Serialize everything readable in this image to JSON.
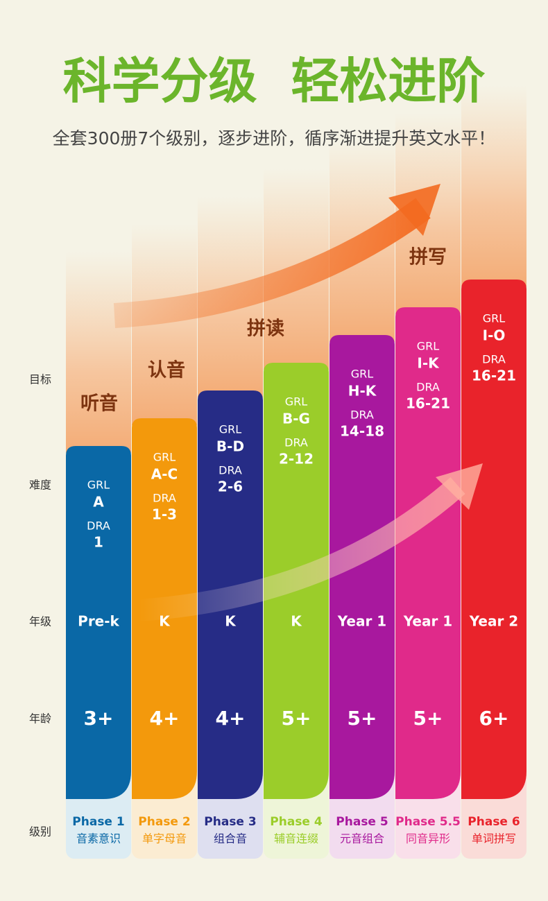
{
  "header": {
    "title": "科学分级  轻松进阶",
    "subtitle": "全套300册7个级别，逐步进阶，循序渐进提升英文水平！"
  },
  "row_labels": [
    "目标",
    "难度",
    "年级",
    "年龄",
    "级别"
  ],
  "goals": [
    "听音",
    "认音",
    "拼读",
    "拼写"
  ],
  "columns": [
    {
      "grl_label": "GRL",
      "grl": "A",
      "dra_label": "DRA",
      "dra": "1",
      "grade": "Pre-k",
      "age": "3+",
      "phase": "Phase 1",
      "phase_desc": "音素意识",
      "color": "#0a68a6",
      "tint": "#dcecf3"
    },
    {
      "grl_label": "GRL",
      "grl": "A-C",
      "dra_label": "DRA",
      "dra": "1-3",
      "grade": "K",
      "age": "4+",
      "phase": "Phase 2",
      "phase_desc": "单字母音",
      "color": "#f3990c",
      "tint": "#fbecd2"
    },
    {
      "grl_label": "GRL",
      "grl": "B-D",
      "dra_label": "DRA",
      "dra": "2-6",
      "grade": "K",
      "age": "4+",
      "phase": "Phase 3",
      "phase_desc": "组合音",
      "color": "#262c86",
      "tint": "#dedff0"
    },
    {
      "grl_label": "GRL",
      "grl": "B-G",
      "dra_label": "DRA",
      "dra": "2-12",
      "grade": "K",
      "age": "5+",
      "phase": "Phase 4",
      "phase_desc": "辅音连缀",
      "color": "#9bcd2a",
      "tint": "#eef5d8"
    },
    {
      "grl_label": "GRL",
      "grl": "H-K",
      "dra_label": "DRA",
      "dra": "14-18",
      "grade": "Year 1",
      "age": "5+",
      "phase": "Phase 5",
      "phase_desc": "元音组合",
      "color": "#a8189e",
      "tint": "#f2dcef"
    },
    {
      "grl_label": "GRL",
      "grl": "I-K",
      "dra_label": "DRA",
      "dra": "16-21",
      "grade": "Year 1",
      "age": "5+",
      "phase": "Phase 5.5",
      "phase_desc": "同音异形",
      "color": "#e02a8a",
      "tint": "#f9dfea"
    },
    {
      "grl_label": "GRL",
      "grl": "I-O",
      "dra_label": "DRA",
      "dra": "16-21",
      "grade": "Year 2",
      "age": "6+",
      "phase": "Phase 6",
      "phase_desc": "单词拼写",
      "color": "#e9232b",
      "tint": "#fadcd8"
    }
  ]
}
